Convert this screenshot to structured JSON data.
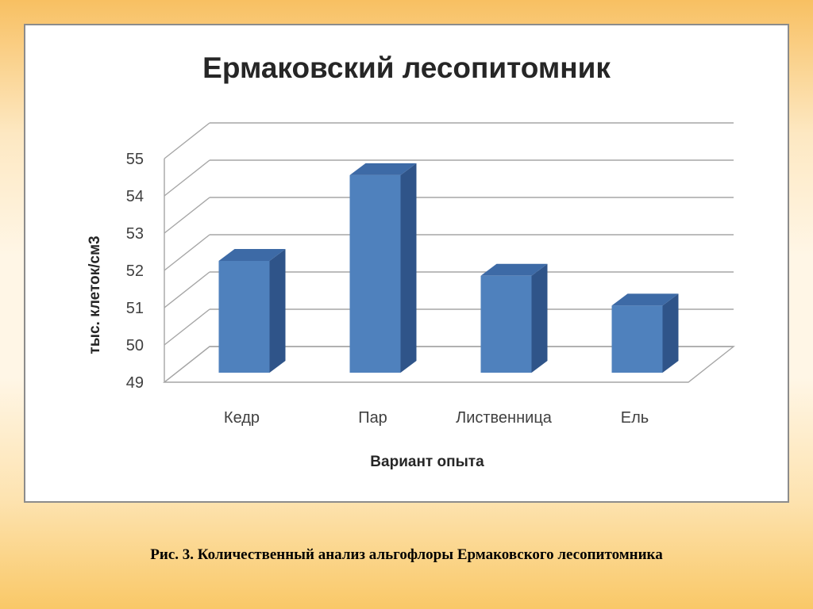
{
  "chart_data": {
    "type": "bar",
    "style": "3d-clustered-column",
    "title": "Ермаковский лесопитомник",
    "xlabel": "Вариант опыта",
    "ylabel": "тыс. клеток/см3",
    "categories": [
      "Кедр",
      "Пар",
      "Лиственница",
      "Ель"
    ],
    "values": [
      52,
      54.3,
      51.6,
      50.8
    ],
    "ylim": [
      49,
      55
    ],
    "yticks": [
      "49",
      "50",
      "51",
      "52",
      "53",
      "54",
      "55"
    ],
    "grid": true,
    "legend": "none",
    "colors": {
      "bar_front": "#4f81bd",
      "bar_side": "#2f5489",
      "bar_top": "#3d6aa6",
      "grid": "#a6a6a6"
    }
  },
  "caption": "Рис. 3.  Количественный анализ альгофлоры Ермаковского лесопитомника",
  "colors": {
    "background_top": "#f8c062",
    "background_mid": "#fff6e6",
    "frame_border": "#8c8c8c"
  }
}
